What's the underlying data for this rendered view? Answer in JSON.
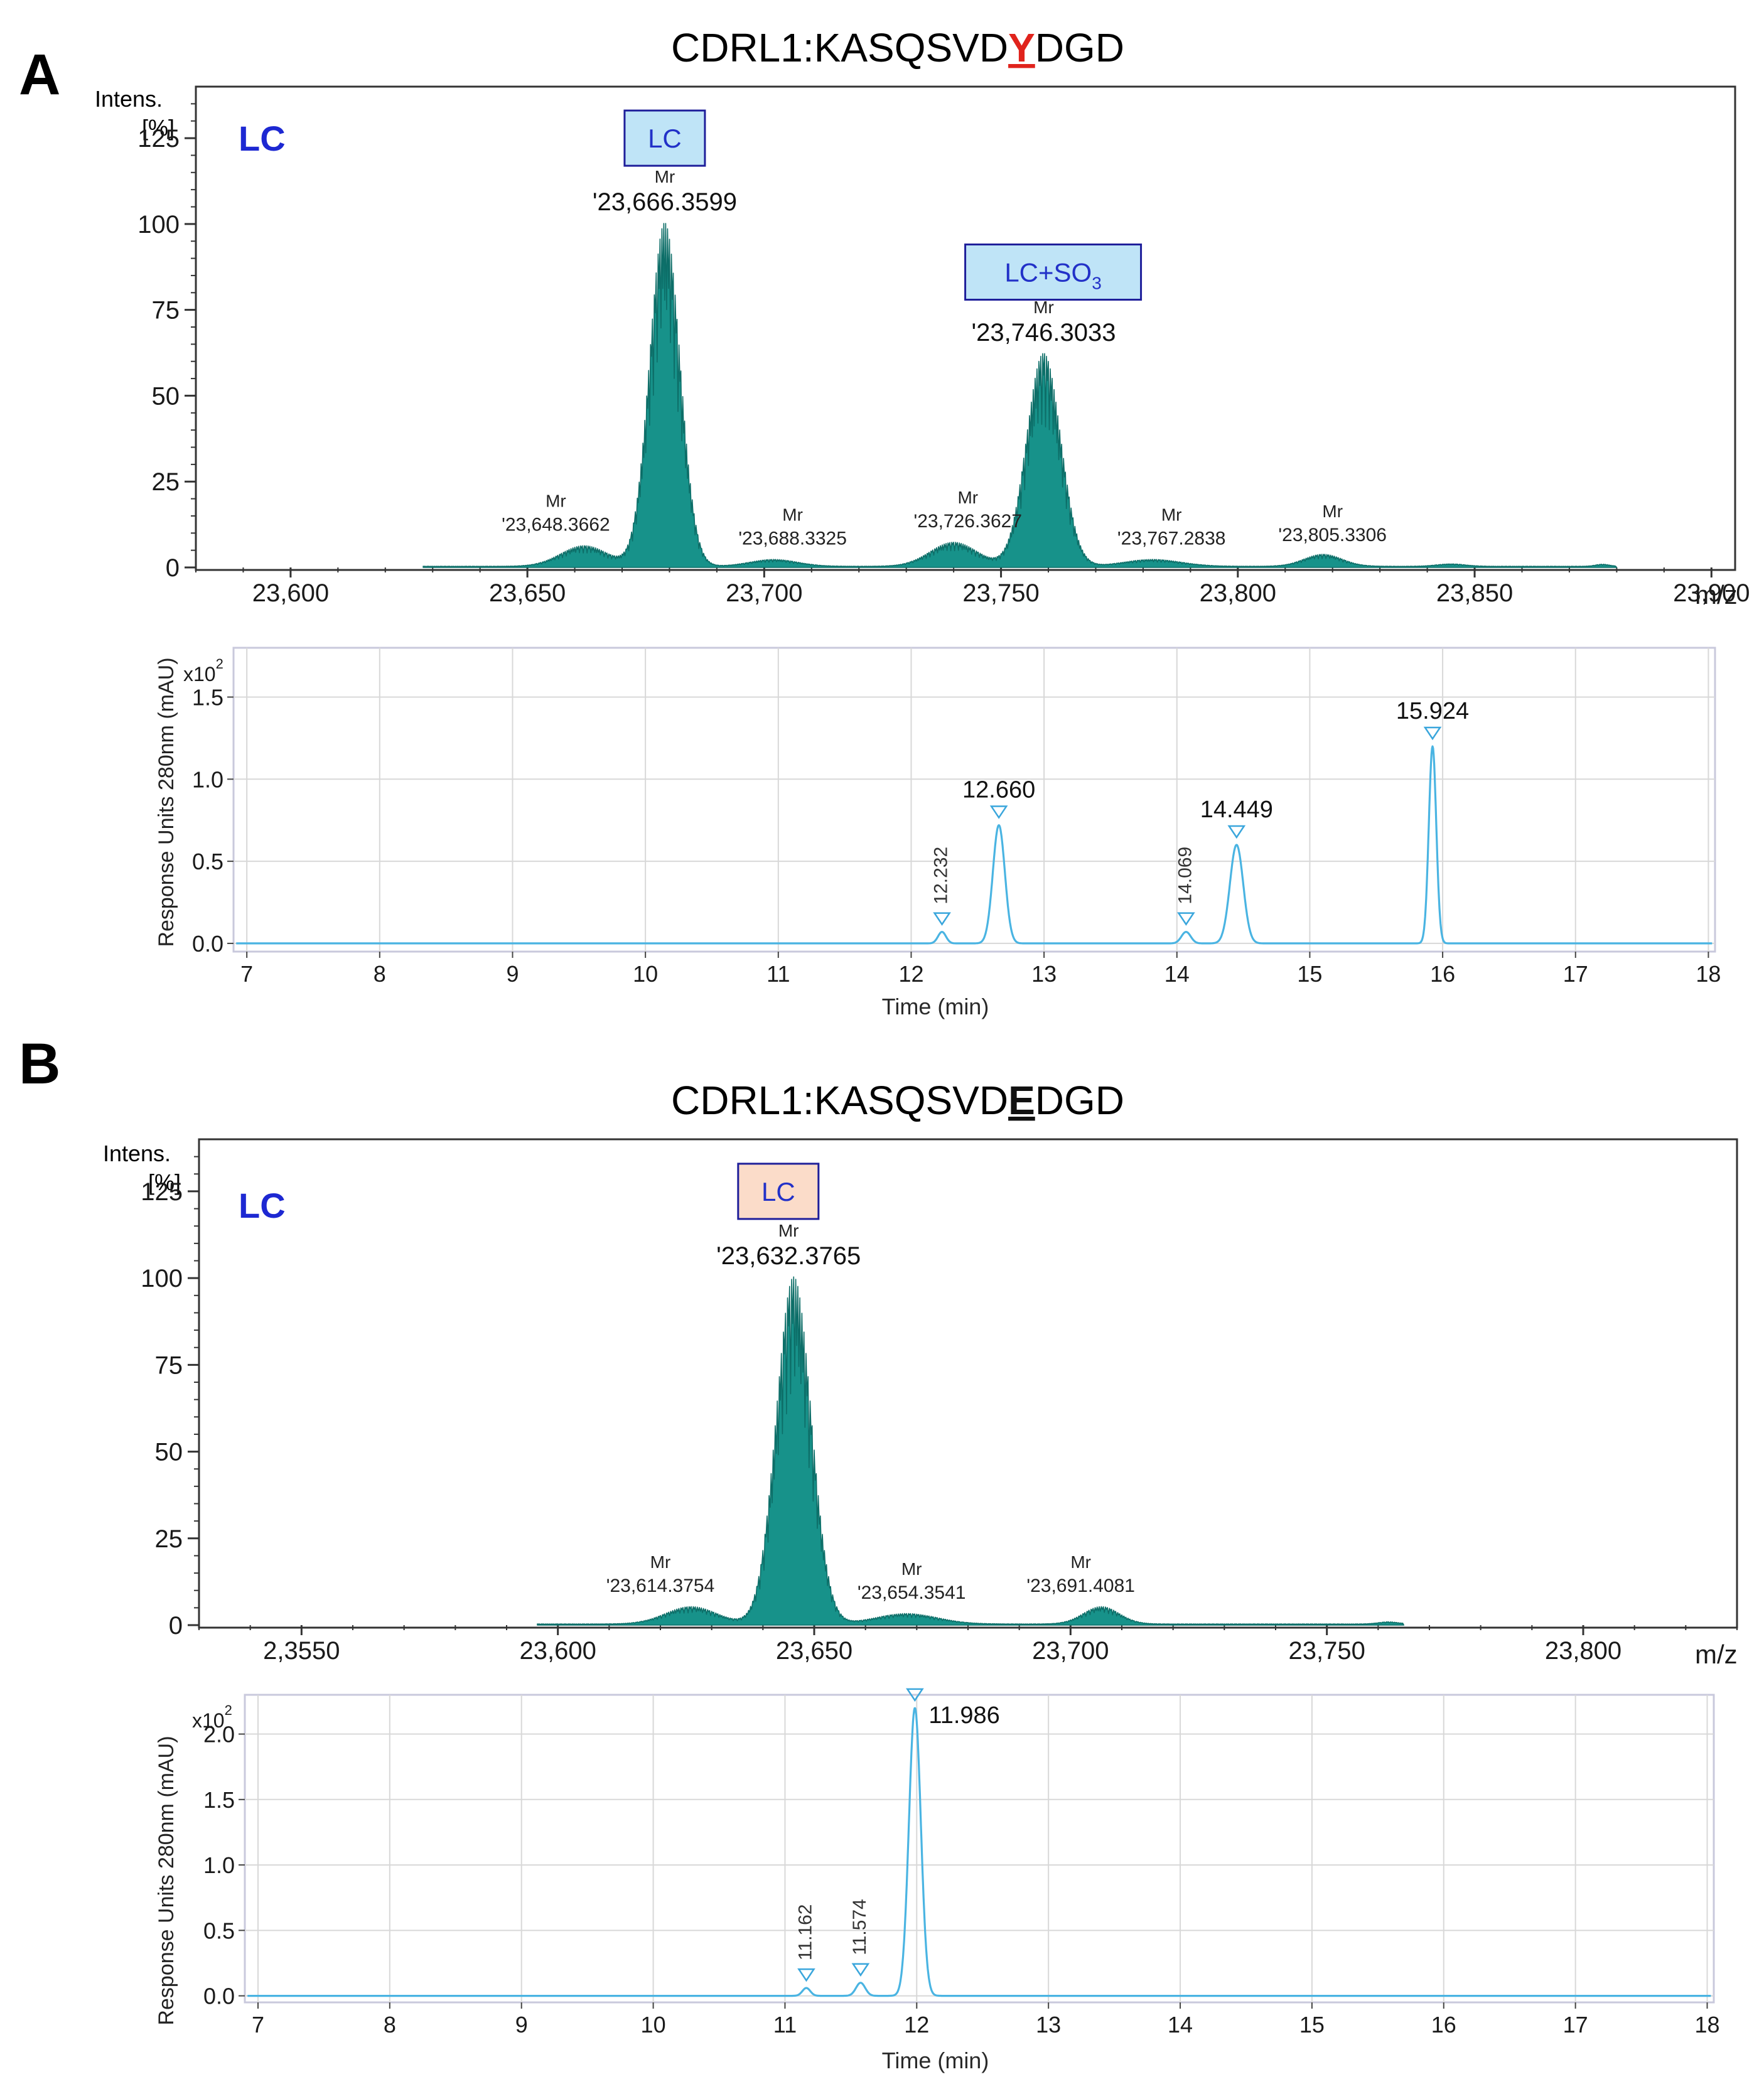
{
  "panels": [
    {
      "letter": "A",
      "title_prefix": "CDRL1:KASQSVD",
      "title_mut": "Y",
      "title_suffix": "DGD",
      "mut_color": "#e0231c",
      "mass_spectrum": {
        "type": "area",
        "corner_label": "LC",
        "ylabel_line1": "Intens.",
        "ylabel_line2": "[%]",
        "xunit": "m/z",
        "xlim": [
          23580,
          23905
        ],
        "ylim": [
          0,
          140
        ],
        "xticks": [
          {
            "v": 23600,
            "label": "23,600"
          },
          {
            "v": 23650,
            "label": "23,650"
          },
          {
            "v": 23700,
            "label": "23,700"
          },
          {
            "v": 23750,
            "label": "23,750"
          },
          {
            "v": 23800,
            "label": "23,800"
          },
          {
            "v": 23850,
            "label": "23,850"
          },
          {
            "v": 23900,
            "label": "23,900"
          }
        ],
        "yticks": [
          {
            "v": 0,
            "label": "0"
          },
          {
            "v": 25,
            "label": "25"
          },
          {
            "v": 50,
            "label": "50"
          },
          {
            "v": 75,
            "label": "75"
          },
          {
            "v": 100,
            "label": "100"
          },
          {
            "v": 125,
            "label": "125"
          }
        ],
        "x_range": [
          23628,
          23880
        ],
        "peaks": [
          {
            "x": 23662,
            "h": 6,
            "w": 5
          },
          {
            "x": 23679,
            "h": 100,
            "w": 3.2
          },
          {
            "x": 23702,
            "h": 2,
            "w": 5
          },
          {
            "x": 23740,
            "h": 7,
            "w": 5
          },
          {
            "x": 23759,
            "h": 62,
            "w": 3.6
          },
          {
            "x": 23782,
            "h": 2,
            "w": 6
          },
          {
            "x": 23818,
            "h": 3.5,
            "w": 4
          },
          {
            "x": 23845,
            "h": 0.7,
            "w": 3
          },
          {
            "x": 23877,
            "h": 0.6,
            "w": 1.5
          }
        ],
        "annotations": [
          {
            "x": 23679,
            "y": 100,
            "mr": "Mr",
            "value": "'23,666.3599",
            "size": "big"
          },
          {
            "x": 23759,
            "y": 62,
            "mr": "Mr",
            "value": "'23,746.3033",
            "size": "big"
          },
          {
            "x": 23656,
            "y": 7,
            "mr": "Mr",
            "value": "'23,648.3662",
            "size": "small"
          },
          {
            "x": 23706,
            "y": 3,
            "mr": "Mr",
            "value": "'23,688.3325",
            "size": "small"
          },
          {
            "x": 23743,
            "y": 8,
            "mr": "Mr",
            "value": "'23,726.3627",
            "size": "small"
          },
          {
            "x": 23786,
            "y": 3,
            "mr": "Mr",
            "value": "'23,767.2838",
            "size": "small"
          },
          {
            "x": 23820,
            "y": 4,
            "mr": "Mr",
            "value": "'23,805.3306",
            "size": "small"
          }
        ],
        "boxes": [
          {
            "x": 23679,
            "y": 125,
            "main": "LC",
            "sub": "",
            "fill": "#bfe4f7",
            "border": "#1e1e9a",
            "text": "#2231c8"
          },
          {
            "x": 23761,
            "y": 86,
            "main": "LC+SO",
            "sub": "3",
            "fill": "#bfe4f7",
            "border": "#1e1e9a",
            "text": "#2231c8"
          }
        ]
      },
      "chromatogram": {
        "type": "line",
        "ylabel": "Response Units 280nm (mAU)",
        "xlabel": "Time (min)",
        "multiplier": "x10",
        "multiplier_exp": "2",
        "xlim": [
          6.9,
          18.05
        ],
        "ylim": [
          -0.05,
          1.8
        ],
        "xticks": [
          7,
          8,
          9,
          10,
          11,
          12,
          13,
          14,
          15,
          16,
          17,
          18
        ],
        "yticks": [
          {
            "v": 0,
            "label": "0.0"
          },
          {
            "v": 0.5,
            "label": "0.5"
          },
          {
            "v": 1.0,
            "label": "1.0"
          },
          {
            "v": 1.5,
            "label": "1.5"
          }
        ],
        "peaks": [
          {
            "t": 12.232,
            "h": 0.07,
            "s": 0.03
          },
          {
            "t": 12.66,
            "h": 0.72,
            "s": 0.045
          },
          {
            "t": 14.069,
            "h": 0.07,
            "s": 0.035
          },
          {
            "t": 14.449,
            "h": 0.6,
            "s": 0.05
          },
          {
            "t": 15.924,
            "h": 1.2,
            "s": 0.028
          }
        ],
        "peak_labels": [
          {
            "t": 12.232,
            "label": "12.232",
            "rot": true
          },
          {
            "t": 12.66,
            "label": "12.660",
            "rot": false
          },
          {
            "t": 14.069,
            "label": "14.069",
            "rot": true
          },
          {
            "t": 14.449,
            "label": "14.449",
            "rot": false
          },
          {
            "t": 15.924,
            "label": "15.924",
            "rot": false
          }
        ]
      }
    },
    {
      "letter": "B",
      "title_prefix": "CDRL1:KASQSVD",
      "title_mut": "E",
      "title_suffix": "DGD",
      "mut_color": "#111111",
      "mass_spectrum": {
        "type": "area",
        "corner_label": "LC",
        "ylabel_line1": "Intens.",
        "ylabel_line2": "[%]",
        "xunit": "m/z",
        "xlim": [
          23530,
          23830
        ],
        "ylim": [
          0,
          140
        ],
        "xticks": [
          {
            "v": 23550,
            "label": "2,3550"
          },
          {
            "v": 23600,
            "label": "23,600"
          },
          {
            "v": 23650,
            "label": "23,650"
          },
          {
            "v": 23700,
            "label": "23,700"
          },
          {
            "v": 23750,
            "label": "23,750"
          },
          {
            "v": 23800,
            "label": "23,800"
          }
        ],
        "yticks": [
          {
            "v": 0,
            "label": "0"
          },
          {
            "v": 25,
            "label": "25"
          },
          {
            "v": 50,
            "label": "50"
          },
          {
            "v": 75,
            "label": "75"
          },
          {
            "v": 100,
            "label": "100"
          },
          {
            "v": 125,
            "label": "125"
          }
        ],
        "x_range": [
          23596,
          23765
        ],
        "peaks": [
          {
            "x": 23626,
            "h": 5,
            "w": 5
          },
          {
            "x": 23646,
            "h": 100,
            "w": 3.4
          },
          {
            "x": 23668,
            "h": 3,
            "w": 6
          },
          {
            "x": 23706,
            "h": 5,
            "w": 3.5
          },
          {
            "x": 23762,
            "h": 0.6,
            "w": 2
          }
        ],
        "annotations": [
          {
            "x": 23645,
            "y": 100,
            "mr": "Mr",
            "value": "'23,632.3765",
            "size": "big"
          },
          {
            "x": 23620,
            "y": 6,
            "mr": "Mr",
            "value": "'23,614.3754",
            "size": "small"
          },
          {
            "x": 23669,
            "y": 4,
            "mr": "Mr",
            "value": "'23,654.3541",
            "size": "small"
          },
          {
            "x": 23702,
            "y": 6,
            "mr": "Mr",
            "value": "'23,691.4081",
            "size": "small"
          }
        ],
        "boxes": [
          {
            "x": 23643,
            "y": 125,
            "main": "LC",
            "sub": "",
            "fill": "#fbdcc9",
            "border": "#1e1e9a",
            "text": "#2231c8"
          }
        ]
      },
      "chromatogram": {
        "type": "line",
        "ylabel": "Response Units 280nm (mAU)",
        "xlabel": "Time (min)",
        "multiplier": "x10",
        "multiplier_exp": "2",
        "xlim": [
          6.9,
          18.05
        ],
        "ylim": [
          -0.05,
          2.3
        ],
        "xticks": [
          7,
          8,
          9,
          10,
          11,
          12,
          13,
          14,
          15,
          16,
          17,
          18
        ],
        "yticks": [
          {
            "v": 0,
            "label": "0.0"
          },
          {
            "v": 0.5,
            "label": "0.5"
          },
          {
            "v": 1.0,
            "label": "1.0"
          },
          {
            "v": 1.5,
            "label": "1.5"
          },
          {
            "v": 2.0,
            "label": "2.0"
          }
        ],
        "peaks": [
          {
            "t": 11.162,
            "h": 0.06,
            "s": 0.03
          },
          {
            "t": 11.574,
            "h": 0.1,
            "s": 0.035
          },
          {
            "t": 11.986,
            "h": 2.2,
            "s": 0.045
          }
        ],
        "peak_labels": [
          {
            "t": 11.162,
            "label": "11.162",
            "rot": true
          },
          {
            "t": 11.574,
            "label": "11.574",
            "rot": true
          },
          {
            "t": 11.986,
            "label": "11.986",
            "rot": false,
            "side": "right"
          }
        ]
      }
    }
  ],
  "colors": {
    "spectrum_fill": "#17928a",
    "spectrum_line": "#0d6e68",
    "chrom_line": "#4ab4e2",
    "marker": "#3aa6dc",
    "grid": "#d8d8d8",
    "corner_label": "#1d28d2",
    "axis_text": "#1a1a1a"
  }
}
